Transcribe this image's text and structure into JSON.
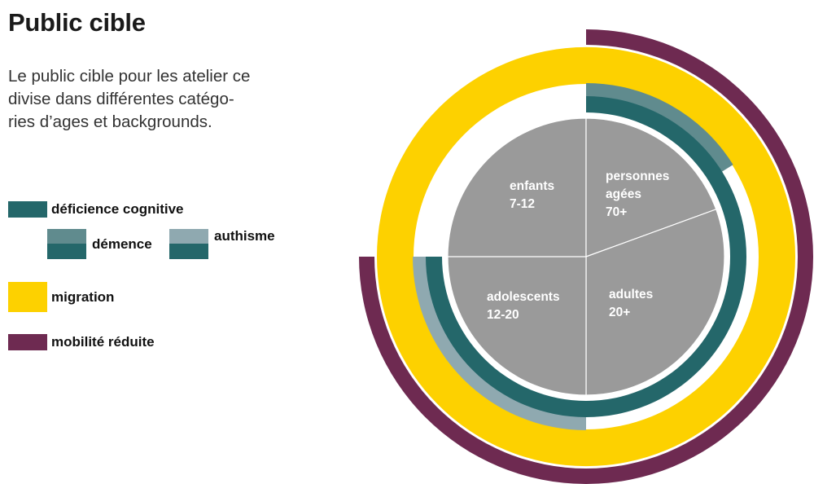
{
  "title": "Public cible",
  "intro_lines": [
    "Le public cible pour les atelier ce",
    "divise dans différentes catégo-",
    "ries d’ages et backgrounds."
  ],
  "colors": {
    "pie": "#9a9a9a",
    "deficience": "#24676a",
    "demence": "#608b8e",
    "authisme": "#8fa9b0",
    "migration": "#fdd100",
    "mobilite": "#6e2a51"
  },
  "legend": {
    "deficience": "déficience cognitive",
    "demence": "démence",
    "authisme": "authisme",
    "migration": "migration",
    "mobilite": "mobilité réduite"
  },
  "chart_data": {
    "type": "pie",
    "categories": [
      {
        "name": "enfants",
        "range": "7-12",
        "start_deg": 258,
        "end_deg": 360
      },
      {
        "name": "personnes agées",
        "range": "70+",
        "start_deg": 0,
        "end_deg": 70
      },
      {
        "name": "adultes",
        "range": "20+",
        "start_deg": 70,
        "end_deg": 180
      },
      {
        "name": "adolescents",
        "range": "12-20",
        "start_deg": 180,
        "end_deg": 270
      }
    ],
    "labels": {
      "enfants": [
        "enfants",
        "7-12"
      ],
      "personnes": [
        "personnes",
        "agées",
        "70+"
      ],
      "adultes": [
        "adultes",
        "20+"
      ],
      "adolescents": [
        "adolescents",
        "12-20"
      ]
    },
    "rings": [
      {
        "name": "déficience cognitive",
        "color_key": "deficience",
        "start_deg": 0,
        "end_deg": 270
      },
      {
        "name": "démence",
        "color_key": "demence",
        "start_deg": 0,
        "end_deg": 58
      },
      {
        "name": "authisme",
        "color_key": "authisme",
        "start_deg": 180,
        "end_deg": 270
      },
      {
        "name": "migration",
        "color_key": "migration",
        "start_deg": 0,
        "end_deg": 360
      },
      {
        "name": "mobilité réduite",
        "color_key": "mobilite",
        "start_deg": 0,
        "end_deg": 270
      }
    ]
  }
}
